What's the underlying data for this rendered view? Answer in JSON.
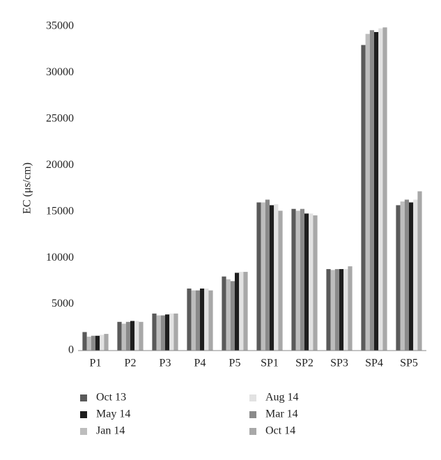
{
  "chart_data": {
    "type": "bar",
    "y_label": "EC (μs/cm)",
    "categories": [
      "P1",
      "P2",
      "P3",
      "P4",
      "P5",
      "SP1",
      "SP2",
      "SP3",
      "SP4",
      "SP5"
    ],
    "series": [
      {
        "name": "Oct 13",
        "color": "#5a5a5a",
        "values": [
          2000,
          3100,
          4000,
          6700,
          8000,
          16000,
          15300,
          8800,
          33000,
          15700
        ]
      },
      {
        "name": "Jan 14",
        "color": "#bdbdbd",
        "values": [
          1500,
          2900,
          3800,
          6500,
          7700,
          16000,
          15100,
          8700,
          34200,
          16100
        ]
      },
      {
        "name": "Mar 14",
        "color": "#8a8a8a",
        "values": [
          1600,
          3100,
          3800,
          6500,
          7500,
          16300,
          15300,
          8800,
          34600,
          16300
        ]
      },
      {
        "name": "May 14",
        "color": "#1e1e1e",
        "values": [
          1600,
          3200,
          3900,
          6700,
          8400,
          15700,
          14800,
          8800,
          34400,
          16000
        ]
      },
      {
        "name": "Aug 14",
        "color": "#e2e2e2",
        "values": [
          1700,
          3200,
          4000,
          6700,
          8500,
          15800,
          14800,
          8800,
          34800,
          16300
        ]
      },
      {
        "name": "Oct 14",
        "color": "#a8a8a8",
        "values": [
          1800,
          3100,
          4000,
          6500,
          8500,
          15100,
          14600,
          9100,
          34900,
          17200
        ]
      }
    ],
    "ylim": [
      0,
      35000
    ],
    "yticks": [
      0,
      5000,
      10000,
      15000,
      20000,
      25000,
      30000,
      35000
    ]
  }
}
